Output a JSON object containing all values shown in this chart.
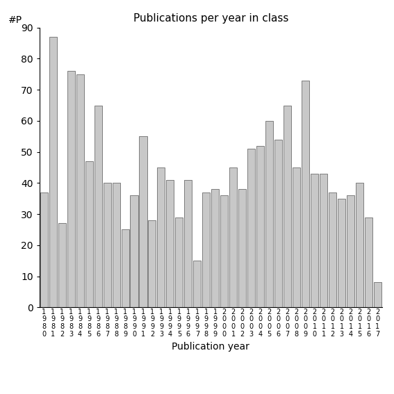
{
  "title": "Publications per year in class",
  "xlabel": "Publication year",
  "ylabel": "#P",
  "bar_color": "#c8c8c8",
  "bar_edge_color": "#555555",
  "ylim": [
    0,
    90
  ],
  "yticks": [
    0,
    10,
    20,
    30,
    40,
    50,
    60,
    70,
    80,
    90
  ],
  "years": [
    1980,
    1981,
    1982,
    1983,
    1984,
    1985,
    1986,
    1987,
    1988,
    1989,
    1990,
    1991,
    1992,
    1993,
    1994,
    1995,
    1996,
    1997,
    1998,
    1999,
    2000,
    2001,
    2002,
    2003,
    2004,
    2005,
    2006,
    2007,
    2008,
    2009,
    2010,
    2011,
    2012,
    2013,
    2014,
    2015,
    2016,
    2017
  ],
  "values": [
    37,
    87,
    27,
    76,
    75,
    47,
    65,
    40,
    40,
    25,
    36,
    55,
    28,
    45,
    41,
    29,
    41,
    15,
    37,
    38,
    36,
    45,
    38,
    51,
    52,
    60,
    54,
    65,
    45,
    73,
    43,
    43,
    37,
    35,
    36,
    40,
    29,
    8
  ],
  "figsize": [
    5.67,
    5.67
  ],
  "dpi": 100,
  "title_fontsize": 11,
  "axis_label_fontsize": 10,
  "tick_fontsize": 7,
  "bar_width": 0.85
}
